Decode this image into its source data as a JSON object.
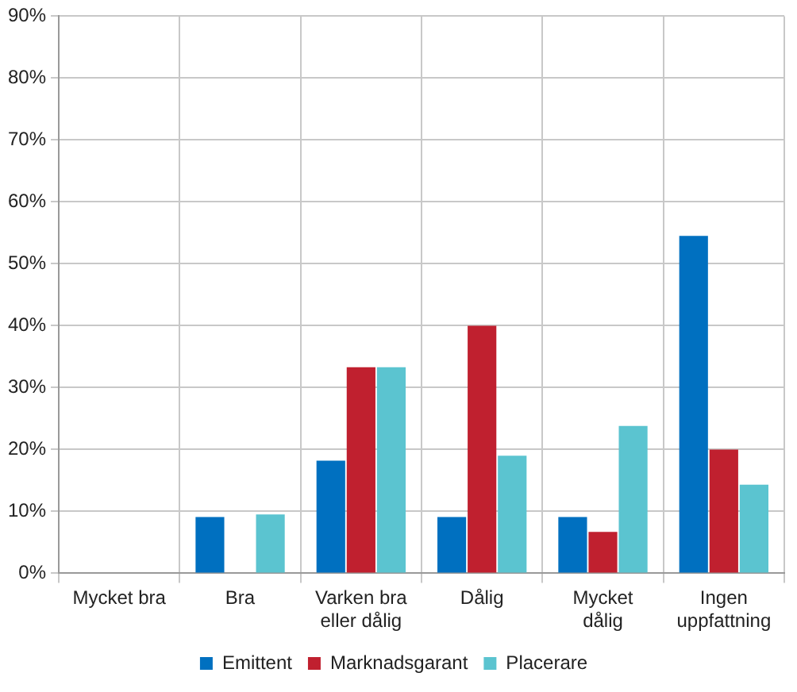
{
  "chart_data": {
    "type": "bar",
    "categories": [
      "Mycket bra",
      "Bra",
      "Varken bra eller dålig",
      "Dålig",
      "Mycket dålig",
      "Ingen uppfattning"
    ],
    "series": [
      {
        "name": "Emittent",
        "color": "#0070c0",
        "values": [
          0,
          9.1,
          18.2,
          9.1,
          9.1,
          54.5
        ]
      },
      {
        "name": "Marknadsgarant",
        "color": "#c0202f",
        "values": [
          0,
          0,
          33.3,
          40,
          6.7,
          20
        ]
      },
      {
        "name": "Placerare",
        "color": "#5bc4d0",
        "values": [
          0,
          9.5,
          33.3,
          19,
          23.8,
          14.3
        ]
      }
    ],
    "ylim": [
      0,
      90
    ],
    "yticks": [
      {
        "value": 0,
        "label": "0%"
      },
      {
        "value": 10,
        "label": "10%"
      },
      {
        "value": 20,
        "label": "20%"
      },
      {
        "value": 30,
        "label": "30%"
      },
      {
        "value": 40,
        "label": "40%"
      },
      {
        "value": 50,
        "label": "50%"
      },
      {
        "value": 60,
        "label": "60%"
      },
      {
        "value": 70,
        "label": "70%"
      },
      {
        "value": 80,
        "label": "80%"
      },
      {
        "value": 90,
        "label": "90%"
      }
    ],
    "grid": true,
    "legend": "bottom"
  }
}
